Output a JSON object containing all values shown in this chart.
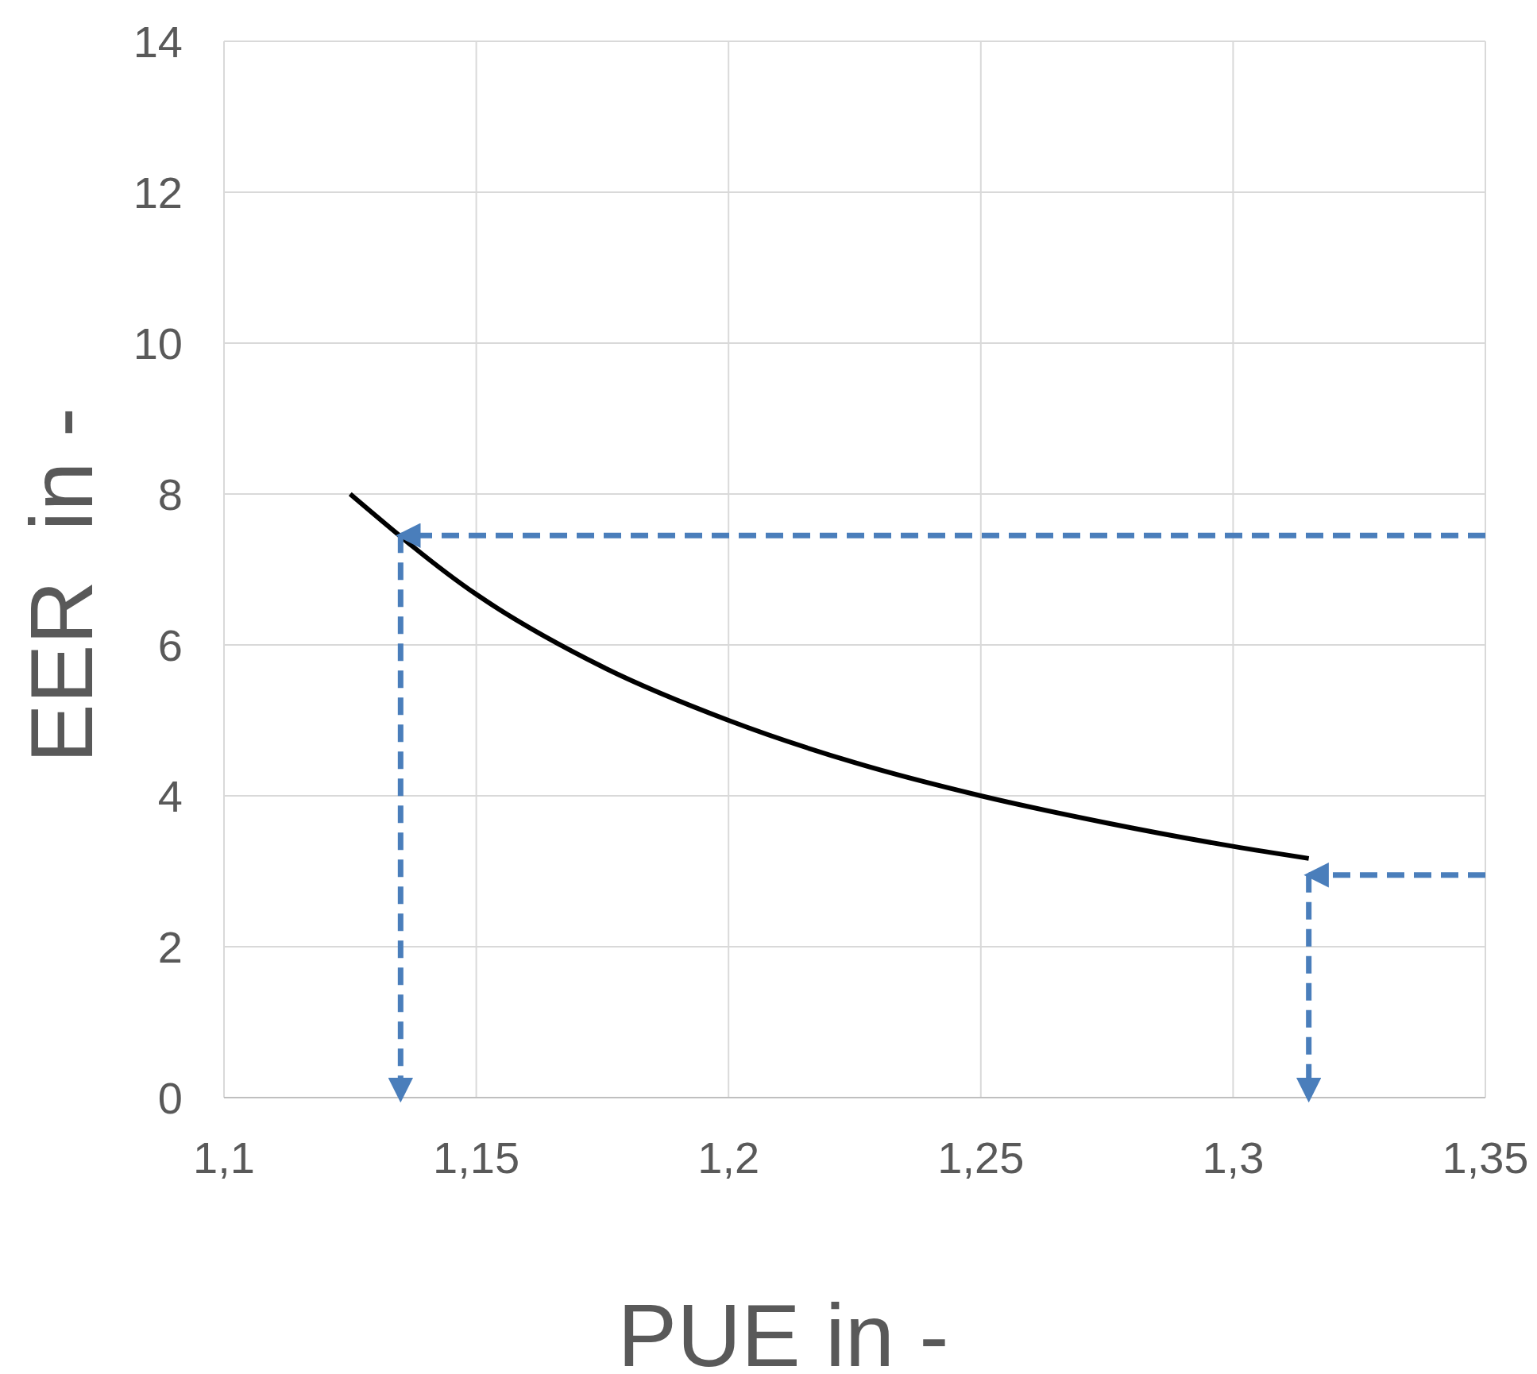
{
  "chart_data": {
    "type": "line",
    "xlabel": "PUE in -",
    "ylabel": "EER  in -",
    "xlim": [
      1.1,
      1.35
    ],
    "ylim": [
      0,
      14
    ],
    "xticks": [
      {
        "value": 1.1,
        "label": "1,1"
      },
      {
        "value": 1.15,
        "label": "1,15"
      },
      {
        "value": 1.2,
        "label": "1,2"
      },
      {
        "value": 1.25,
        "label": "1,25"
      },
      {
        "value": 1.3,
        "label": "1,3"
      },
      {
        "value": 1.35,
        "label": "1,35"
      }
    ],
    "yticks": [
      0,
      2,
      4,
      6,
      8,
      10,
      12,
      14
    ],
    "grid": true,
    "marker": "none",
    "series": [
      {
        "color": "#000000",
        "line_style": "solid",
        "x": [
          1.125,
          1.15,
          1.175,
          1.2,
          1.225,
          1.25,
          1.275,
          1.3,
          1.315
        ],
        "values": [
          8,
          6.67,
          5.71,
          5,
          4.44,
          4,
          3.64,
          3.33,
          3.17
        ]
      },
      {
        "color": "#4a7ebb",
        "line_style": "dashed",
        "x": [
          1.35,
          1.135
        ],
        "values": [
          7.45,
          7.45
        ]
      },
      {
        "color": "#4a7ebb",
        "line_style": "dashed",
        "x": [
          1.135,
          1.135
        ],
        "values": [
          7.45,
          0
        ]
      },
      {
        "color": "#4a7ebb",
        "line_style": "dashed",
        "x": [
          1.35,
          1.315
        ],
        "values": [
          2.95,
          2.95
        ]
      },
      {
        "color": "#4a7ebb",
        "line_style": "dashed",
        "x": [
          1.315,
          1.315
        ],
        "values": [
          2.95,
          0
        ]
      }
    ]
  }
}
